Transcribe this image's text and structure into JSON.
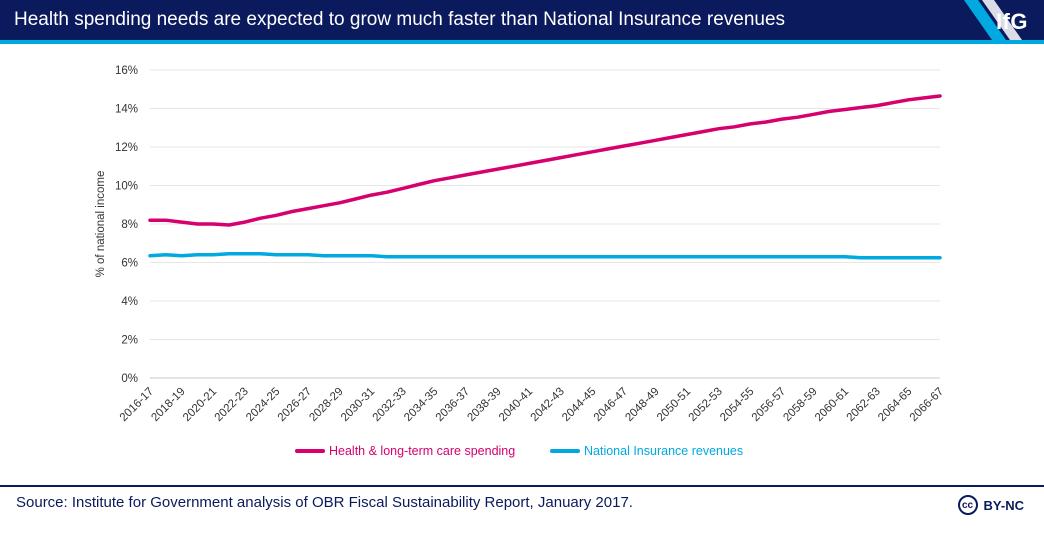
{
  "header": {
    "title": "Health spending needs are expected to grow much faster than National Insurance revenues",
    "logo_text": "IfG"
  },
  "footer": {
    "source": "Source: Institute for Government analysis of OBR Fiscal Sustainability Report, January 2017.",
    "license_text": "BY-NC",
    "license_icon": "cc-icon",
    "license_icon_text": "cc"
  },
  "colors": {
    "header_bg": "#0b1a5c",
    "accent": "#00a9e0",
    "health": "#d6006e",
    "ni": "#00a9e0"
  },
  "chart_data": {
    "type": "line",
    "title": "",
    "xlabel": "",
    "ylabel": "% of national income",
    "ylim": [
      0,
      16
    ],
    "yticks": [
      "0%",
      "2%",
      "4%",
      "6%",
      "8%",
      "10%",
      "12%",
      "14%",
      "16%"
    ],
    "grid": true,
    "legend_position": "bottom",
    "categories": [
      "2016-17",
      "2017-18",
      "2018-19",
      "2019-20",
      "2020-21",
      "2021-22",
      "2022-23",
      "2023-24",
      "2024-25",
      "2025-26",
      "2026-27",
      "2027-28",
      "2028-29",
      "2029-30",
      "2030-31",
      "2031-32",
      "2032-33",
      "2033-34",
      "2034-35",
      "2035-36",
      "2036-37",
      "2037-38",
      "2038-39",
      "2039-40",
      "2040-41",
      "2041-42",
      "2042-43",
      "2043-44",
      "2044-45",
      "2045-46",
      "2046-47",
      "2047-48",
      "2048-49",
      "2049-50",
      "2050-51",
      "2051-52",
      "2052-53",
      "2053-54",
      "2054-55",
      "2055-56",
      "2056-57",
      "2057-58",
      "2058-59",
      "2059-60",
      "2060-61",
      "2061-62",
      "2062-63",
      "2063-64",
      "2064-65",
      "2065-66",
      "2066-67"
    ],
    "tick_labels": [
      "2016-17",
      "2018-19",
      "2020-21",
      "2022-23",
      "2024-25",
      "2026-27",
      "2028-29",
      "2030-31",
      "2032-33",
      "2034-35",
      "2036-37",
      "2038-39",
      "2040-41",
      "2042-43",
      "2044-45",
      "2046-47",
      "2048-49",
      "2050-51",
      "2052-53",
      "2054-55",
      "2056-57",
      "2058-59",
      "2060-61",
      "2062-63",
      "2064-65",
      "2066-67"
    ],
    "series": [
      {
        "name": "Health & long-term care spending",
        "color": "#d6006e",
        "values": [
          8.2,
          8.2,
          8.1,
          8.0,
          8.0,
          7.95,
          8.1,
          8.3,
          8.45,
          8.65,
          8.8,
          8.95,
          9.1,
          9.3,
          9.5,
          9.65,
          9.85,
          10.05,
          10.25,
          10.4,
          10.55,
          10.7,
          10.85,
          11.0,
          11.15,
          11.3,
          11.45,
          11.6,
          11.75,
          11.9,
          12.05,
          12.2,
          12.35,
          12.5,
          12.65,
          12.8,
          12.95,
          13.05,
          13.2,
          13.3,
          13.45,
          13.55,
          13.7,
          13.85,
          13.95,
          14.05,
          14.15,
          14.3,
          14.45,
          14.55,
          14.65
        ]
      },
      {
        "name": "National Insurance revenues",
        "color": "#00a9e0",
        "values": [
          6.35,
          6.4,
          6.35,
          6.4,
          6.4,
          6.45,
          6.45,
          6.45,
          6.4,
          6.4,
          6.4,
          6.35,
          6.35,
          6.35,
          6.35,
          6.3,
          6.3,
          6.3,
          6.3,
          6.3,
          6.3,
          6.3,
          6.3,
          6.3,
          6.3,
          6.3,
          6.3,
          6.3,
          6.3,
          6.3,
          6.3,
          6.3,
          6.3,
          6.3,
          6.3,
          6.3,
          6.3,
          6.3,
          6.3,
          6.3,
          6.3,
          6.3,
          6.3,
          6.3,
          6.3,
          6.25,
          6.25,
          6.25,
          6.25,
          6.25,
          6.25
        ]
      }
    ]
  }
}
